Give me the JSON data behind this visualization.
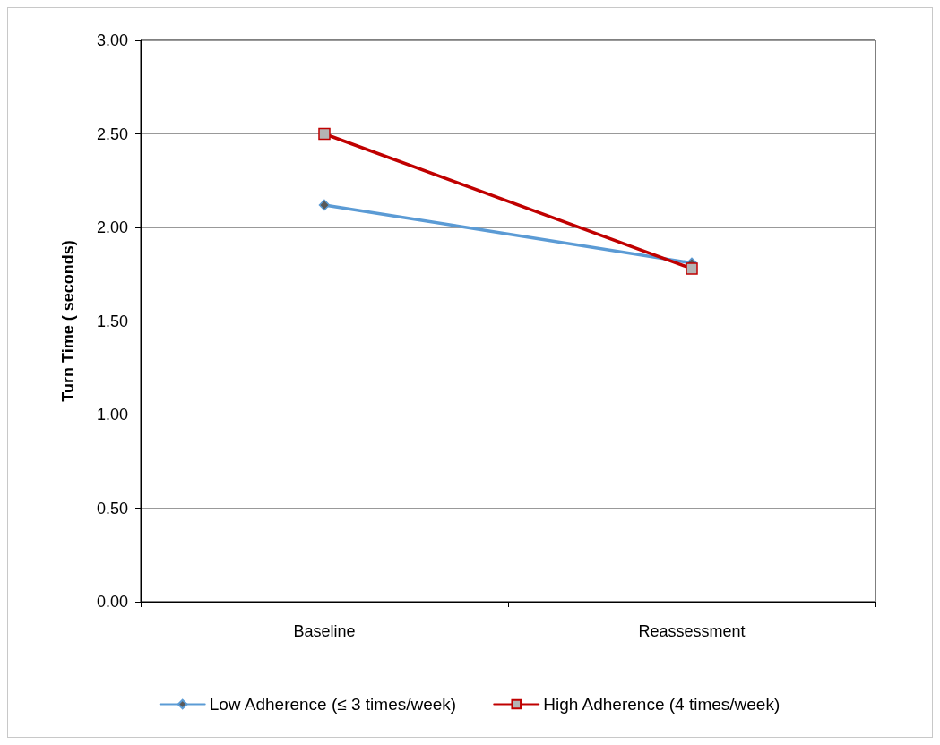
{
  "chart_data": {
    "type": "line",
    "ylabel": "Turn Time ( seconds)",
    "categories": [
      "Baseline",
      "Reassessment"
    ],
    "series": [
      {
        "name": "Low Adherence (≤ 3 times/week)",
        "color": "#5b9bd5",
        "marker": "diamond",
        "values": [
          2.12,
          1.81
        ]
      },
      {
        "name": "High Adherence (4 times/week)",
        "color": "#c00000",
        "marker": "square",
        "values": [
          2.5,
          1.78
        ]
      }
    ],
    "ylim": [
      0,
      3
    ],
    "yticks": [
      {
        "value": 0,
        "label": "0.00"
      },
      {
        "value": 0.5,
        "label": "0.50"
      },
      {
        "value": 1,
        "label": "1.00"
      },
      {
        "value": 1.5,
        "label": "1.50"
      },
      {
        "value": 2,
        "label": "2.00"
      },
      {
        "value": 2.5,
        "label": "2.50"
      },
      {
        "value": 3,
        "label": "3.00"
      }
    ],
    "grid": "y",
    "legend": "bottom",
    "line_style": "solid"
  }
}
